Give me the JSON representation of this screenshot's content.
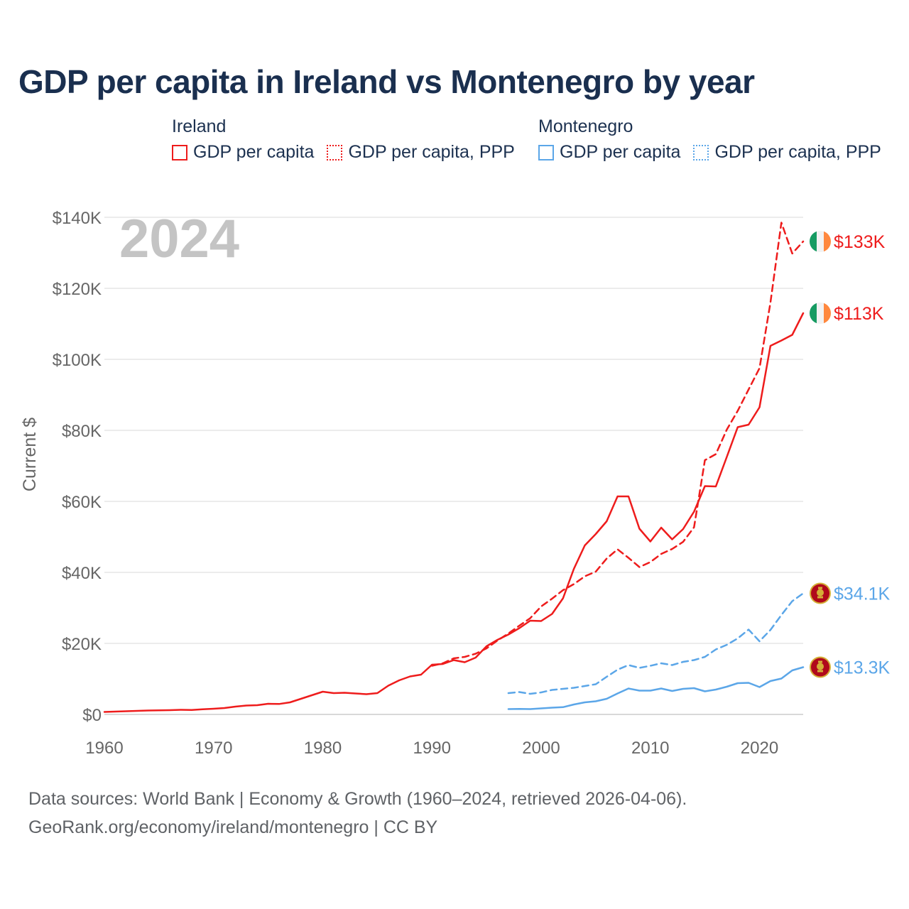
{
  "title": "GDP per capita in Ireland vs Montenegro by year",
  "year_display": "2024",
  "legend": {
    "ireland": {
      "name": "Ireland",
      "series1": "GDP per capita",
      "series2": "GDP per capita, PPP"
    },
    "montenegro": {
      "name": "Montenegro",
      "series1": "GDP per capita",
      "series2": "GDP per capita, PPP"
    }
  },
  "colors": {
    "ireland": "#ee1c1c",
    "montenegro": "#5ba6e8",
    "title": "#1a2f4f"
  },
  "footer": {
    "line1": "Data sources: World Bank | Economy & Growth (1960–2024, retrieved 2026-04-06).",
    "line2": "GeoRank.org/economy/ireland/montenegro | CC BY"
  },
  "end_labels": {
    "ireland_ppp": "$133K",
    "ireland_gdp": "$113K",
    "montenegro_ppp": "$34.1K",
    "montenegro_gdp": "$13.3K"
  },
  "chart_data": {
    "type": "line",
    "title": "GDP per capita in Ireland vs Montenegro by year",
    "xlabel": "",
    "ylabel": "Current $",
    "xlim": [
      1960,
      2024
    ],
    "ylim": [
      0,
      140000
    ],
    "x_ticks": [
      1960,
      1970,
      1980,
      1990,
      2000,
      2010,
      2020
    ],
    "y_ticks": [
      0,
      20000,
      40000,
      60000,
      80000,
      100000,
      120000,
      140000
    ],
    "y_tick_labels": [
      "$0",
      "$20K",
      "$40K",
      "$60K",
      "$80K",
      "$100K",
      "$120K",
      "$140K"
    ],
    "grid": true,
    "series": [
      {
        "name": "Ireland GDP per capita",
        "country": "ireland",
        "dash": "solid",
        "x": [
          1960,
          1961,
          1962,
          1963,
          1964,
          1965,
          1966,
          1967,
          1968,
          1969,
          1970,
          1971,
          1972,
          1973,
          1974,
          1975,
          1976,
          1977,
          1978,
          1979,
          1980,
          1981,
          1982,
          1983,
          1984,
          1985,
          1986,
          1987,
          1988,
          1989,
          1990,
          1991,
          1992,
          1993,
          1994,
          1995,
          1996,
          1997,
          1998,
          1999,
          2000,
          2001,
          2002,
          2003,
          2004,
          2005,
          2006,
          2007,
          2008,
          2009,
          2010,
          2011,
          2012,
          2013,
          2014,
          2015,
          2016,
          2017,
          2018,
          2019,
          2020,
          2021,
          2022,
          2023,
          2024
        ],
        "values": [
          700,
          800,
          900,
          1000,
          1100,
          1150,
          1200,
          1300,
          1250,
          1450,
          1600,
          1800,
          2200,
          2500,
          2600,
          3000,
          2950,
          3400,
          4400,
          5400,
          6400,
          6000,
          6100,
          5900,
          5700,
          6000,
          8100,
          9600,
          10700,
          11200,
          14000,
          14200,
          15300,
          14700,
          16000,
          19200,
          21000,
          22500,
          24300,
          26400,
          26300,
          28300,
          32700,
          41000,
          47600,
          50800,
          54400,
          61400,
          61400,
          52300,
          48700,
          52600,
          49300,
          52200,
          57100,
          64300,
          64200,
          72500,
          80900,
          81600,
          86500,
          103800,
          105300,
          106900,
          113000
        ]
      },
      {
        "name": "Ireland GDP per capita, PPP",
        "country": "ireland",
        "dash": "dashed",
        "x": [
          1990,
          1991,
          1992,
          1993,
          1994,
          1995,
          1996,
          1997,
          1998,
          1999,
          2000,
          2001,
          2002,
          2003,
          2004,
          2005,
          2006,
          2007,
          2008,
          2009,
          2010,
          2011,
          2012,
          2013,
          2014,
          2015,
          2016,
          2017,
          2018,
          2019,
          2020,
          2021,
          2022,
          2023,
          2024
        ],
        "values": [
          13700,
          14400,
          15800,
          16200,
          17100,
          18600,
          20800,
          22800,
          25000,
          27100,
          30400,
          32600,
          35000,
          36700,
          38900,
          40200,
          43900,
          46500,
          44100,
          41500,
          42900,
          45200,
          46600,
          48600,
          52700,
          71600,
          73300,
          80200,
          85500,
          91500,
          97500,
          116000,
          138500,
          129800,
          133200
        ]
      },
      {
        "name": "Montenegro GDP per capita",
        "country": "montenegro",
        "dash": "solid",
        "x": [
          1997,
          1998,
          1999,
          2000,
          2001,
          2002,
          2003,
          2004,
          2005,
          2006,
          2007,
          2008,
          2009,
          2010,
          2011,
          2012,
          2013,
          2014,
          2015,
          2016,
          2017,
          2018,
          2019,
          2020,
          2021,
          2022,
          2023,
          2024
        ],
        "values": [
          1500,
          1550,
          1500,
          1700,
          1900,
          2050,
          2800,
          3400,
          3700,
          4400,
          5900,
          7300,
          6700,
          6700,
          7300,
          6600,
          7200,
          7400,
          6500,
          7000,
          7800,
          8800,
          8900,
          7700,
          9400,
          10100,
          12400,
          13300
        ]
      },
      {
        "name": "Montenegro GDP per capita, PPP",
        "country": "montenegro",
        "dash": "dashed",
        "x": [
          1997,
          1998,
          1999,
          2000,
          2001,
          2002,
          2003,
          2004,
          2005,
          2006,
          2007,
          2008,
          2009,
          2010,
          2011,
          2012,
          2013,
          2014,
          2015,
          2016,
          2017,
          2018,
          2019,
          2020,
          2021,
          2022,
          2023,
          2024
        ],
        "values": [
          6000,
          6300,
          5800,
          6200,
          6900,
          7200,
          7500,
          8000,
          8500,
          10600,
          12600,
          13900,
          13100,
          13700,
          14400,
          13900,
          14800,
          15300,
          16200,
          18300,
          19600,
          21400,
          23900,
          20600,
          23800,
          28000,
          31900,
          34100
        ]
      }
    ]
  }
}
